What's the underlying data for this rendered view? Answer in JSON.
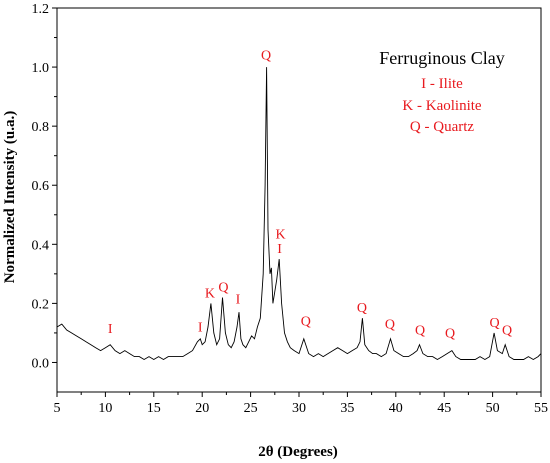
{
  "colors": {
    "annotation": "#e8191e",
    "trace": "#000000",
    "axis": "#000000"
  },
  "chart_data": {
    "type": "line",
    "xlabel": "2θ (Degrees)",
    "ylabel": "Normalized Intensity (u.a.)",
    "xlim": [
      5,
      55
    ],
    "ylim": [
      -0.1,
      1.2
    ],
    "xticks": [
      "5",
      "10",
      "15",
      "20",
      "25",
      "30",
      "35",
      "40",
      "45",
      "50",
      "55"
    ],
    "yticks": [
      "0.0",
      "0.2",
      "0.4",
      "0.6",
      "0.8",
      "1.0",
      "1.2"
    ],
    "grid": false,
    "legend": {
      "position": "top-right",
      "title": "Ferruginous Clay",
      "items": [
        "I - Ilite",
        "K - Kaolinite",
        "Q - Quartz"
      ]
    },
    "annotations": [
      {
        "label": "I",
        "x": 10.5,
        "y": 0.1
      },
      {
        "label": "I",
        "x": 19.8,
        "y": 0.105
      },
      {
        "label": "K",
        "x": 20.8,
        "y": 0.22
      },
      {
        "label": "Q",
        "x": 22.2,
        "y": 0.24
      },
      {
        "label": "I",
        "x": 23.7,
        "y": 0.2
      },
      {
        "label": "Q",
        "x": 26.6,
        "y": 1.025
      },
      {
        "label": "K",
        "x": 28.1,
        "y": 0.42
      },
      {
        "label": "I",
        "x": 28.0,
        "y": 0.37
      },
      {
        "label": "Q",
        "x": 30.7,
        "y": 0.125
      },
      {
        "label": "Q",
        "x": 36.5,
        "y": 0.17
      },
      {
        "label": "Q",
        "x": 39.4,
        "y": 0.115
      },
      {
        "label": "Q",
        "x": 42.5,
        "y": 0.095
      },
      {
        "label": "Q",
        "x": 45.6,
        "y": 0.085
      },
      {
        "label": "Q",
        "x": 50.2,
        "y": 0.12
      },
      {
        "label": "Q",
        "x": 51.5,
        "y": 0.095
      }
    ],
    "series": [
      {
        "x": [
          5.0,
          5.5,
          6.0,
          6.5,
          7.0,
          7.5,
          8.0,
          8.5,
          9.0,
          9.5,
          10.0,
          10.5,
          11.0,
          11.5,
          12.0,
          12.5,
          13.0,
          13.5,
          14.0,
          14.5,
          15.0,
          15.5,
          16.0,
          16.5,
          17.0,
          17.5,
          18.0,
          18.5,
          19.0,
          19.5,
          19.8,
          20.0,
          20.3,
          20.6,
          20.9,
          21.2,
          21.5,
          21.8,
          22.1,
          22.4,
          22.7,
          23.0,
          23.3,
          23.6,
          23.8,
          24.0,
          24.2,
          24.5,
          24.8,
          25.1,
          25.4,
          25.7,
          26.0,
          26.3,
          26.5,
          26.65,
          26.8,
          27.0,
          27.15,
          27.3,
          27.5,
          27.7,
          27.95,
          28.2,
          28.5,
          28.8,
          29.1,
          29.5,
          30.0,
          30.5,
          31.0,
          31.5,
          32.0,
          32.5,
          33.0,
          33.5,
          34.0,
          34.5,
          35.0,
          35.5,
          36.0,
          36.3,
          36.55,
          36.8,
          37.2,
          37.6,
          38.0,
          38.5,
          39.0,
          39.45,
          39.8,
          40.3,
          40.8,
          41.3,
          41.8,
          42.2,
          42.45,
          42.8,
          43.3,
          43.8,
          44.3,
          44.8,
          45.3,
          45.8,
          46.2,
          46.7,
          47.2,
          47.7,
          48.2,
          48.7,
          49.2,
          49.7,
          50.15,
          50.5,
          51.0,
          51.3,
          51.7,
          52.2,
          52.7,
          53.2,
          53.7,
          54.2,
          54.7,
          55.0
        ],
        "values": [
          0.12,
          0.13,
          0.11,
          0.1,
          0.09,
          0.08,
          0.07,
          0.06,
          0.05,
          0.04,
          0.05,
          0.06,
          0.04,
          0.03,
          0.04,
          0.03,
          0.02,
          0.02,
          0.01,
          0.02,
          0.01,
          0.02,
          0.01,
          0.02,
          0.02,
          0.02,
          0.02,
          0.03,
          0.04,
          0.07,
          0.08,
          0.06,
          0.07,
          0.12,
          0.2,
          0.1,
          0.06,
          0.08,
          0.22,
          0.1,
          0.06,
          0.05,
          0.07,
          0.12,
          0.17,
          0.08,
          0.06,
          0.05,
          0.07,
          0.09,
          0.08,
          0.12,
          0.15,
          0.3,
          0.6,
          1.0,
          0.45,
          0.3,
          0.32,
          0.2,
          0.24,
          0.28,
          0.35,
          0.2,
          0.1,
          0.07,
          0.05,
          0.04,
          0.03,
          0.08,
          0.03,
          0.02,
          0.03,
          0.02,
          0.03,
          0.04,
          0.05,
          0.04,
          0.03,
          0.04,
          0.05,
          0.07,
          0.15,
          0.06,
          0.04,
          0.03,
          0.03,
          0.02,
          0.03,
          0.08,
          0.04,
          0.03,
          0.02,
          0.02,
          0.03,
          0.04,
          0.06,
          0.03,
          0.02,
          0.02,
          0.01,
          0.02,
          0.03,
          0.04,
          0.02,
          0.01,
          0.01,
          0.01,
          0.01,
          0.02,
          0.01,
          0.02,
          0.1,
          0.04,
          0.03,
          0.06,
          0.02,
          0.01,
          0.01,
          0.01,
          0.02,
          0.01,
          0.02,
          0.03
        ]
      }
    ]
  }
}
